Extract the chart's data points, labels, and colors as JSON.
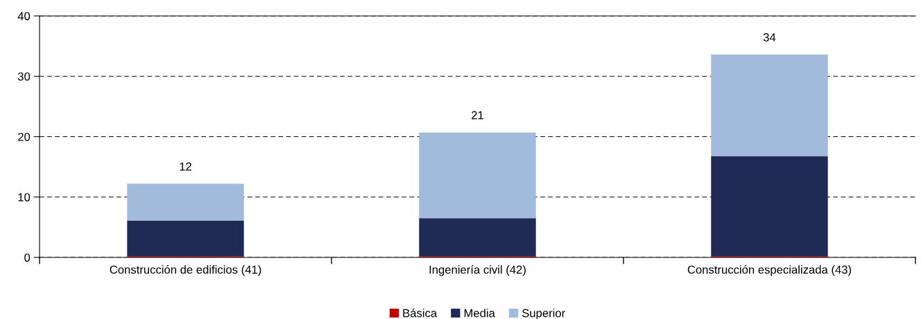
{
  "chart_data": {
    "type": "bar",
    "stacked": true,
    "categories": [
      "Construcción de edificios (41)",
      "Ingeniería civil (42)",
      "Construcción especializada (43)"
    ],
    "series": [
      {
        "name": "Básica",
        "color": "#c00000",
        "values": [
          0.2,
          0.2,
          0.2
        ]
      },
      {
        "name": "Media",
        "color": "#202b55",
        "values": [
          5.9,
          6.3,
          16.6
        ]
      },
      {
        "name": "Superior",
        "color": "#a2bbdc",
        "values": [
          6.1,
          14.2,
          16.8
        ]
      }
    ],
    "totals": [
      "12",
      "21",
      "34"
    ],
    "ylim": [
      0,
      40
    ],
    "yticks": [
      0,
      10,
      20,
      30,
      40
    ],
    "grid": "y",
    "legend": "bottom"
  }
}
